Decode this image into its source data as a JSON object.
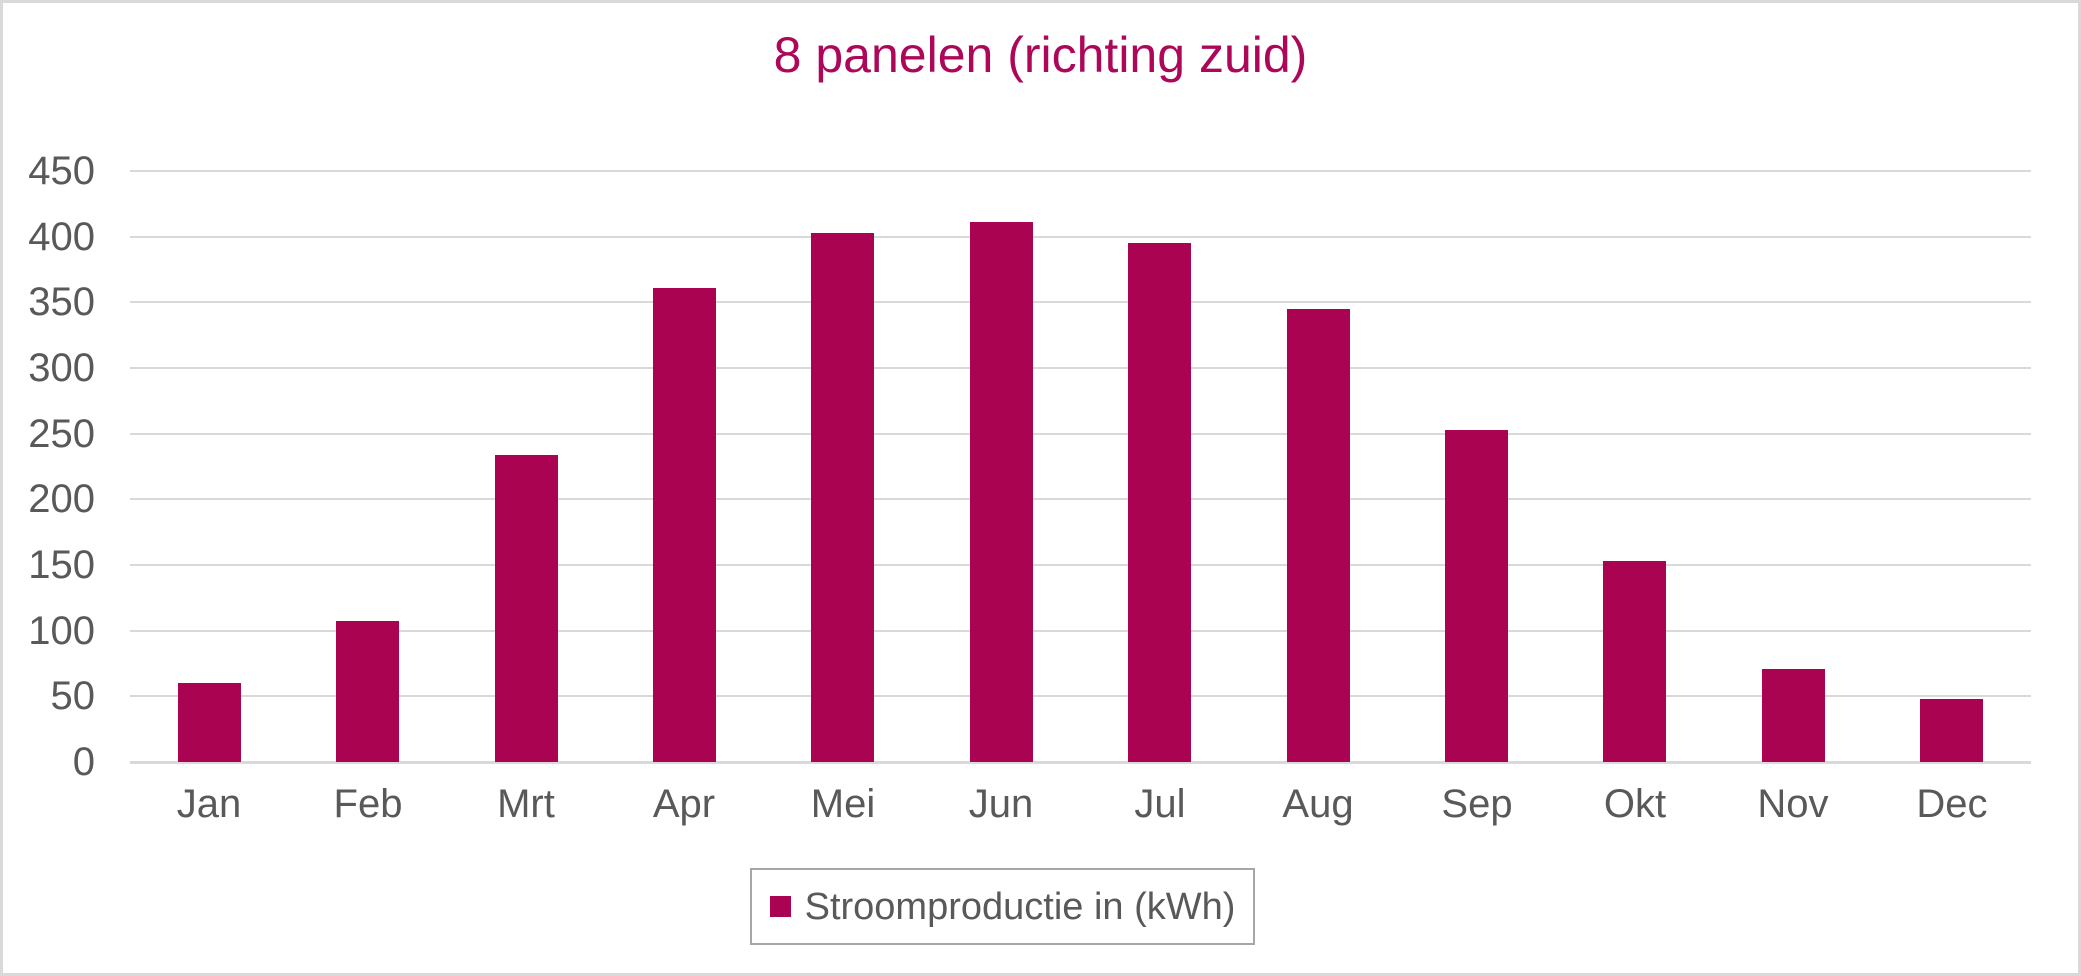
{
  "chart_data": {
    "type": "bar",
    "title": "8 panelen (richting zuid)",
    "categories": [
      "Jan",
      "Feb",
      "Mrt",
      "Apr",
      "Mei",
      "Jun",
      "Jul",
      "Aug",
      "Sep",
      "Okt",
      "Nov",
      "Dec"
    ],
    "series": [
      {
        "name": "Stroomproductie in (kWh)",
        "values": [
          60,
          107,
          234,
          361,
          403,
          411,
          395,
          345,
          253,
          153,
          71,
          48
        ]
      }
    ],
    "xlabel": "",
    "ylabel": "",
    "ylim": [
      0,
      450
    ],
    "ytick_step": 50,
    "ytick_labels": [
      "0",
      "50",
      "100",
      "150",
      "200",
      "250",
      "300",
      "350",
      "400",
      "450"
    ],
    "grid": true,
    "legend_position": "bottom-center",
    "legend_marker": "square-icon",
    "colors": {
      "bar": "#a90351",
      "title": "#ad0759",
      "axis_text": "#595959",
      "gridline": "#d9d9d9",
      "legend_border": "#a6a6a6",
      "frame_border": "#d9d9d9",
      "background": "#ffffff"
    }
  }
}
